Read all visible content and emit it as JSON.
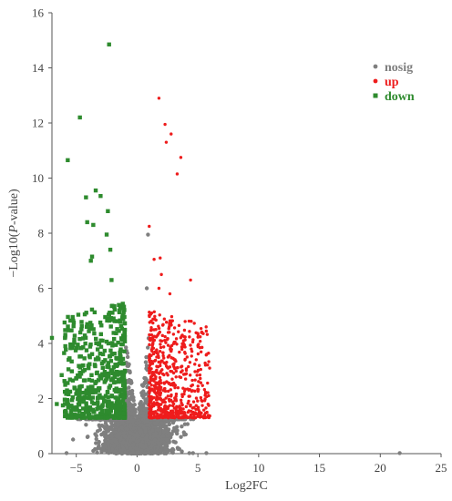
{
  "chart_data": {
    "type": "scatter",
    "title": "",
    "xlabel": "Log2FC",
    "ylabel_parts": [
      "−Log10(",
      "P",
      "-value)"
    ],
    "xlim": [
      -7,
      25
    ],
    "ylim": [
      0,
      16
    ],
    "xticks": [
      -5,
      0,
      5,
      10,
      15,
      20,
      25
    ],
    "yticks": [
      0,
      2,
      4,
      6,
      8,
      10,
      12,
      14,
      16
    ],
    "grid": false,
    "legend_position": "top-right",
    "series": [
      {
        "name": "nosig",
        "color": "#7f7f7f",
        "marker": "circle"
      },
      {
        "name": "up",
        "color": "#ee1c1c",
        "marker": "circle"
      },
      {
        "name": "down",
        "color": "#2e8b2e",
        "marker": "square"
      }
    ],
    "highlight_points": {
      "up": [
        [
          1.8,
          12.9
        ],
        [
          2.3,
          11.95
        ],
        [
          2.4,
          11.3
        ],
        [
          2.8,
          11.6
        ],
        [
          3.6,
          10.75
        ],
        [
          3.3,
          10.15
        ],
        [
          1.0,
          8.25
        ],
        [
          1.4,
          7.05
        ],
        [
          1.9,
          7.1
        ],
        [
          2.0,
          6.5
        ],
        [
          4.4,
          6.3
        ],
        [
          2.7,
          5.8
        ],
        [
          1.8,
          6.0
        ]
      ],
      "down": [
        [
          -2.3,
          14.85
        ],
        [
          -4.7,
          12.2
        ],
        [
          -5.7,
          10.65
        ],
        [
          -3.4,
          9.55
        ],
        [
          -4.2,
          9.3
        ],
        [
          -3.0,
          9.35
        ],
        [
          -2.4,
          8.8
        ],
        [
          -4.1,
          8.4
        ],
        [
          -3.6,
          8.3
        ],
        [
          -2.5,
          7.95
        ],
        [
          -2.2,
          7.4
        ],
        [
          -3.7,
          7.15
        ],
        [
          -3.8,
          7.0
        ],
        [
          -7.0,
          4.2
        ],
        [
          -6.6,
          1.8
        ],
        [
          -6.1,
          1.75
        ],
        [
          -5.7,
          1.9
        ],
        [
          -5.5,
          2.25
        ],
        [
          -6.0,
          3.65
        ],
        [
          -5.9,
          3.9
        ],
        [
          -6.2,
          2.85
        ],
        [
          -2.1,
          6.3
        ]
      ],
      "nosig": [
        [
          0.9,
          7.95
        ],
        [
          0.8,
          6.0
        ],
        [
          21.6,
          0.02
        ],
        [
          5.7,
          0.02
        ],
        [
          4.6,
          0.02
        ],
        [
          4.3,
          0.02
        ],
        [
          -0.6,
          0.02
        ],
        [
          -1.6,
          0.02
        ],
        [
          -5.8,
          0.02
        ]
      ]
    },
    "cluster_parameters": {
      "x_center": 0.0,
      "sig_logfc_cutoff": 1,
      "sig_pvalue_cutoff_log10": 1.3,
      "up_x_extent": [
        1,
        6
      ],
      "up_y_extent": [
        1.3,
        5.2
      ],
      "down_x_extent": [
        -6,
        -1
      ],
      "down_y_extent": [
        1.3,
        5.5
      ],
      "nosig_x_extent": [
        -5.5,
        5.5
      ],
      "nosig_y_extent": [
        0,
        4.0
      ]
    }
  }
}
